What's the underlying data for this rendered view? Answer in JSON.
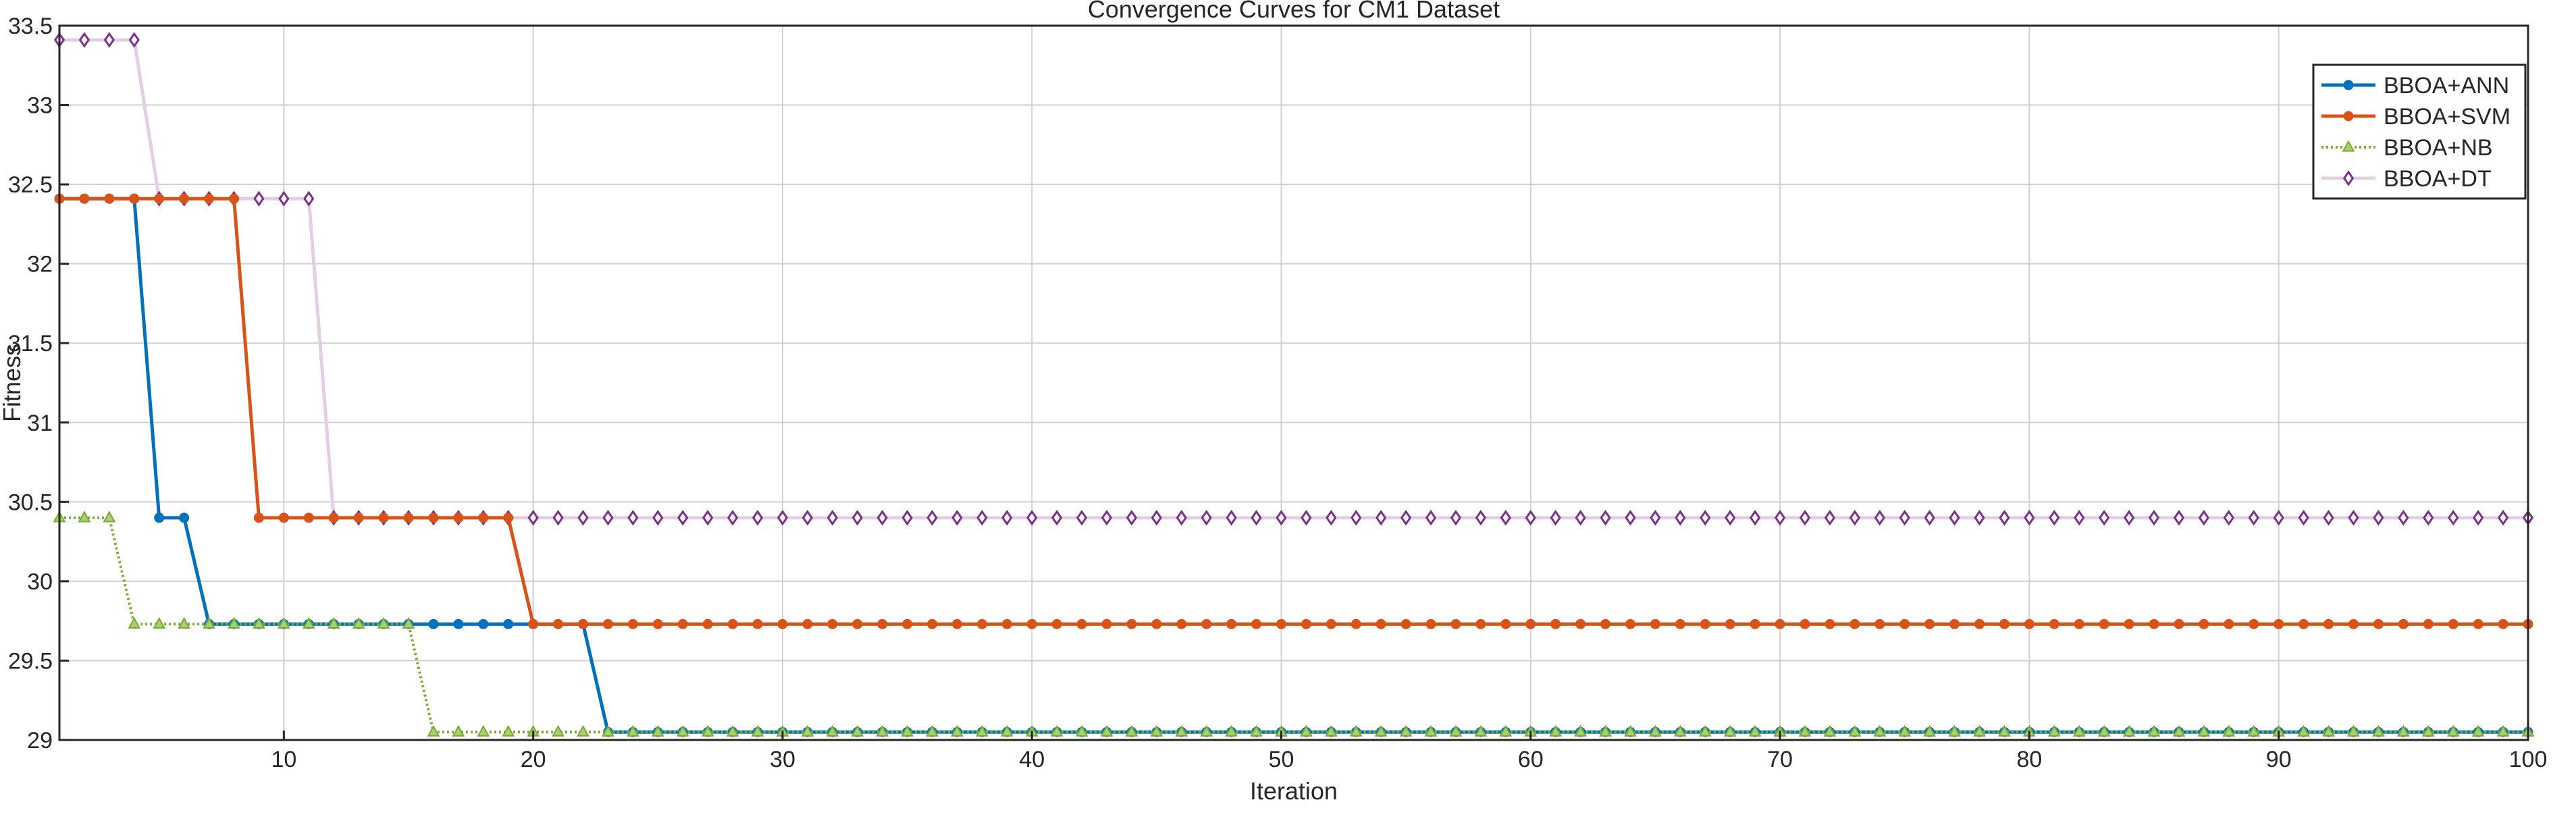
{
  "chart_data": {
    "type": "line",
    "title": "Convergence Curves for CM1 Dataset",
    "xlabel": "Iteration",
    "ylabel": "Fitness",
    "xlim": [
      1,
      100
    ],
    "ylim": [
      29,
      33.5
    ],
    "xticks": [
      10,
      20,
      30,
      40,
      50,
      60,
      70,
      80,
      90,
      100
    ],
    "yticks": [
      29,
      29.5,
      30,
      30.5,
      31,
      31.5,
      32,
      32.5,
      33,
      33.5
    ],
    "grid": true,
    "legend_location": "top-right",
    "series": [
      {
        "name": "BBOA+ANN",
        "color": "#0072BD",
        "marker": "circle",
        "line_style": "solid",
        "steps": [
          [
            1,
            32.41
          ],
          [
            5,
            30.4
          ],
          [
            7,
            29.73
          ],
          [
            23,
            29.05
          ]
        ]
      },
      {
        "name": "BBOA+SVM",
        "color": "#D95319",
        "marker": "circle",
        "line_style": "solid",
        "steps": [
          [
            1,
            32.41
          ],
          [
            9,
            30.4
          ],
          [
            20,
            29.73
          ]
        ]
      },
      {
        "name": "BBOA+NB",
        "color": "#77AC30",
        "marker": "triangle",
        "line_style": "dotted",
        "steps": [
          [
            1,
            30.4
          ],
          [
            4,
            29.73
          ],
          [
            16,
            29.05
          ]
        ]
      },
      {
        "name": "BBOA+DT",
        "color": "#7E2F8E",
        "line_color": "#e3cfe3",
        "marker": "diamond",
        "line_style": "solid",
        "steps": [
          [
            1,
            33.41
          ],
          [
            5,
            32.41
          ],
          [
            12,
            30.4
          ]
        ]
      }
    ]
  }
}
